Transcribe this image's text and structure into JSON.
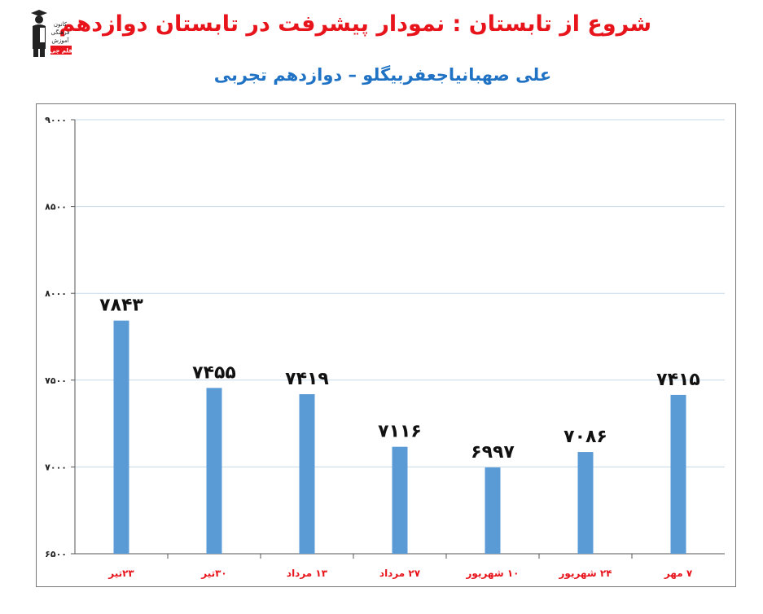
{
  "header": {
    "title": "شروع از تابستان : نمودار پیشرفت در تابستان دوازدهم",
    "subtitle": "علی صهبانیاجعفربیگلو – دوازدهم تجربی"
  },
  "logo": {
    "icon": "graduate-figure-icon",
    "text_lines": [
      "کانون",
      "فرهنگی",
      "آموزش"
    ],
    "badge": "قلم چی"
  },
  "colors": {
    "title": "#e8141c",
    "subtitle": "#1f72c4",
    "bar": "#5b9bd5",
    "category_label": "#e8141c",
    "grid": "#c5d9ea"
  },
  "chart_data": {
    "type": "bar",
    "categories": [
      "۲۳تیر",
      "۳۰تیر",
      "۱۳ مرداد",
      "۲۷ مرداد",
      "۱۰ شهریور",
      "۲۴ شهریور",
      "۷ مهر"
    ],
    "values": [
      7843,
      7455,
      7419,
      7116,
      6997,
      7086,
      7415
    ],
    "value_labels": [
      "۷۸۴۳",
      "۷۴۵۵",
      "۷۴۱۹",
      "۷۱۱۶",
      "۶۹۹۷",
      "۷۰۸۶",
      "۷۴۱۵"
    ],
    "ylim": [
      6500,
      9000
    ],
    "yticks": [
      6500,
      7000,
      7500,
      8000,
      8500,
      9000
    ],
    "ytick_labels": [
      "۶۵۰۰",
      "۷۰۰۰",
      "۷۵۰۰",
      "۸۰۰۰",
      "۸۵۰۰",
      "۹۰۰۰"
    ],
    "grid": true,
    "legend": "none"
  }
}
